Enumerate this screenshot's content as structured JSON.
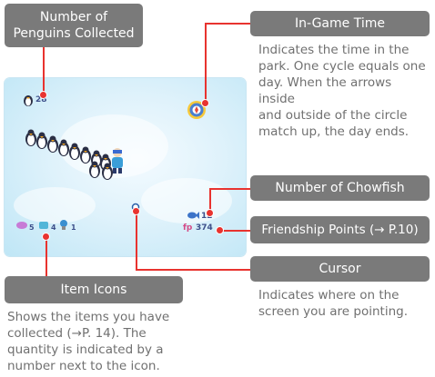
{
  "labels": {
    "penguins": "Number of\nPenguins Collected",
    "time": "In-Game Time",
    "chowfish": "Number of Chowfish",
    "friendship": "Friendship Points (→ P.10)",
    "cursor": "Cursor",
    "items": "Item Icons"
  },
  "descriptions": {
    "time": "Indicates the time in the\npark. One cycle equals one\nday. When the arrows inside\nand outside of the circle\nmatch up, the day ends.",
    "cursor": "Indicates where on the\nscreen you are pointing.",
    "items": "Shows the items you have\ncollected (→P. 14). The\nquantity is indicated by a\nnumber next to the icon."
  },
  "hud": {
    "penguin_count": "28",
    "chowfish_count": "12",
    "friendship_prefix": "fp",
    "friendship_value": "374",
    "item_counts": [
      "5",
      "4",
      "1"
    ]
  },
  "colors": {
    "label_bg": "#7a7a7a",
    "callout_line": "#e8332f",
    "snow": "#dff2fb"
  },
  "icons": [
    "penguin-icon",
    "clock-icon",
    "chowfish-icon",
    "cursor-icon",
    "item-icon"
  ]
}
